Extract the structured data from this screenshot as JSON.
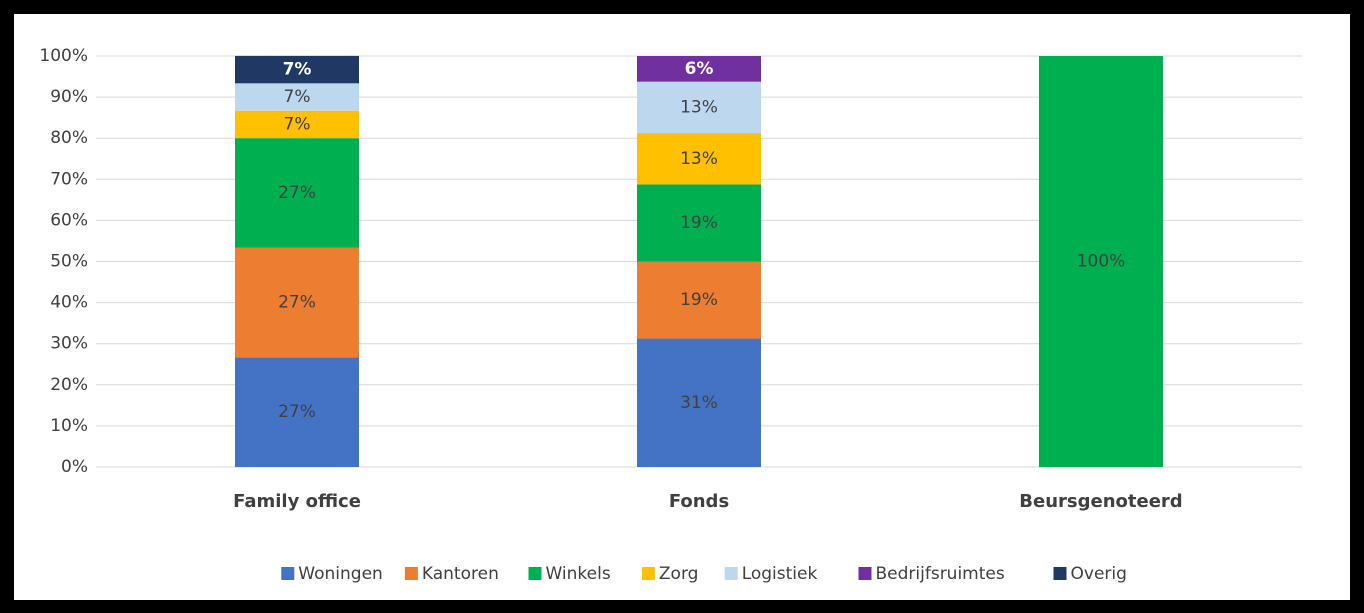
{
  "chart_data": {
    "type": "stacked_bar",
    "categories": [
      "Family office",
      "Fonds",
      "Beursgenoteerd"
    ],
    "series": [
      {
        "name": "Woningen",
        "color": "#4472c4",
        "values": [
          26.67,
          31.25,
          0
        ],
        "value_labels": [
          "27%",
          "31%",
          null
        ]
      },
      {
        "name": "Kantoren",
        "color": "#ed7d31",
        "values": [
          26.67,
          18.75,
          0
        ],
        "value_labels": [
          "27%",
          "19%",
          null
        ]
      },
      {
        "name": "Winkels",
        "color": "#00b050",
        "values": [
          26.67,
          18.75,
          100
        ],
        "value_labels": [
          "27%",
          "19%",
          "100%"
        ]
      },
      {
        "name": "Zorg",
        "color": "#ffc000",
        "values": [
          6.67,
          12.5,
          0
        ],
        "value_labels": [
          "7%",
          "13%",
          null
        ]
      },
      {
        "name": "Logistiek",
        "color": "#bdd7ee",
        "values": [
          6.67,
          12.5,
          0
        ],
        "value_labels": [
          "7%",
          "13%",
          null
        ]
      },
      {
        "name": "Bedrijfsruimtes",
        "color": "#7030a0",
        "values": [
          0,
          6.25,
          0
        ],
        "value_labels": [
          null,
          "6%",
          null
        ]
      },
      {
        "name": "Overig",
        "color": "#203864",
        "values": [
          6.67,
          0,
          0
        ],
        "value_labels": [
          "7%",
          null,
          null
        ]
      }
    ],
    "ylim": [
      0,
      100
    ],
    "yticks": [
      {
        "value": 0,
        "label": "0%"
      },
      {
        "value": 10,
        "label": "10%"
      },
      {
        "value": 20,
        "label": "20%"
      },
      {
        "value": 30,
        "label": "30%"
      },
      {
        "value": 40,
        "label": "40%"
      },
      {
        "value": 50,
        "label": "50%"
      },
      {
        "value": 60,
        "label": "60%"
      },
      {
        "value": 70,
        "label": "70%"
      },
      {
        "value": 80,
        "label": "80%"
      },
      {
        "value": 90,
        "label": "90%"
      },
      {
        "value": 100,
        "label": "100%"
      }
    ],
    "grid": true,
    "legend": "bottom"
  }
}
